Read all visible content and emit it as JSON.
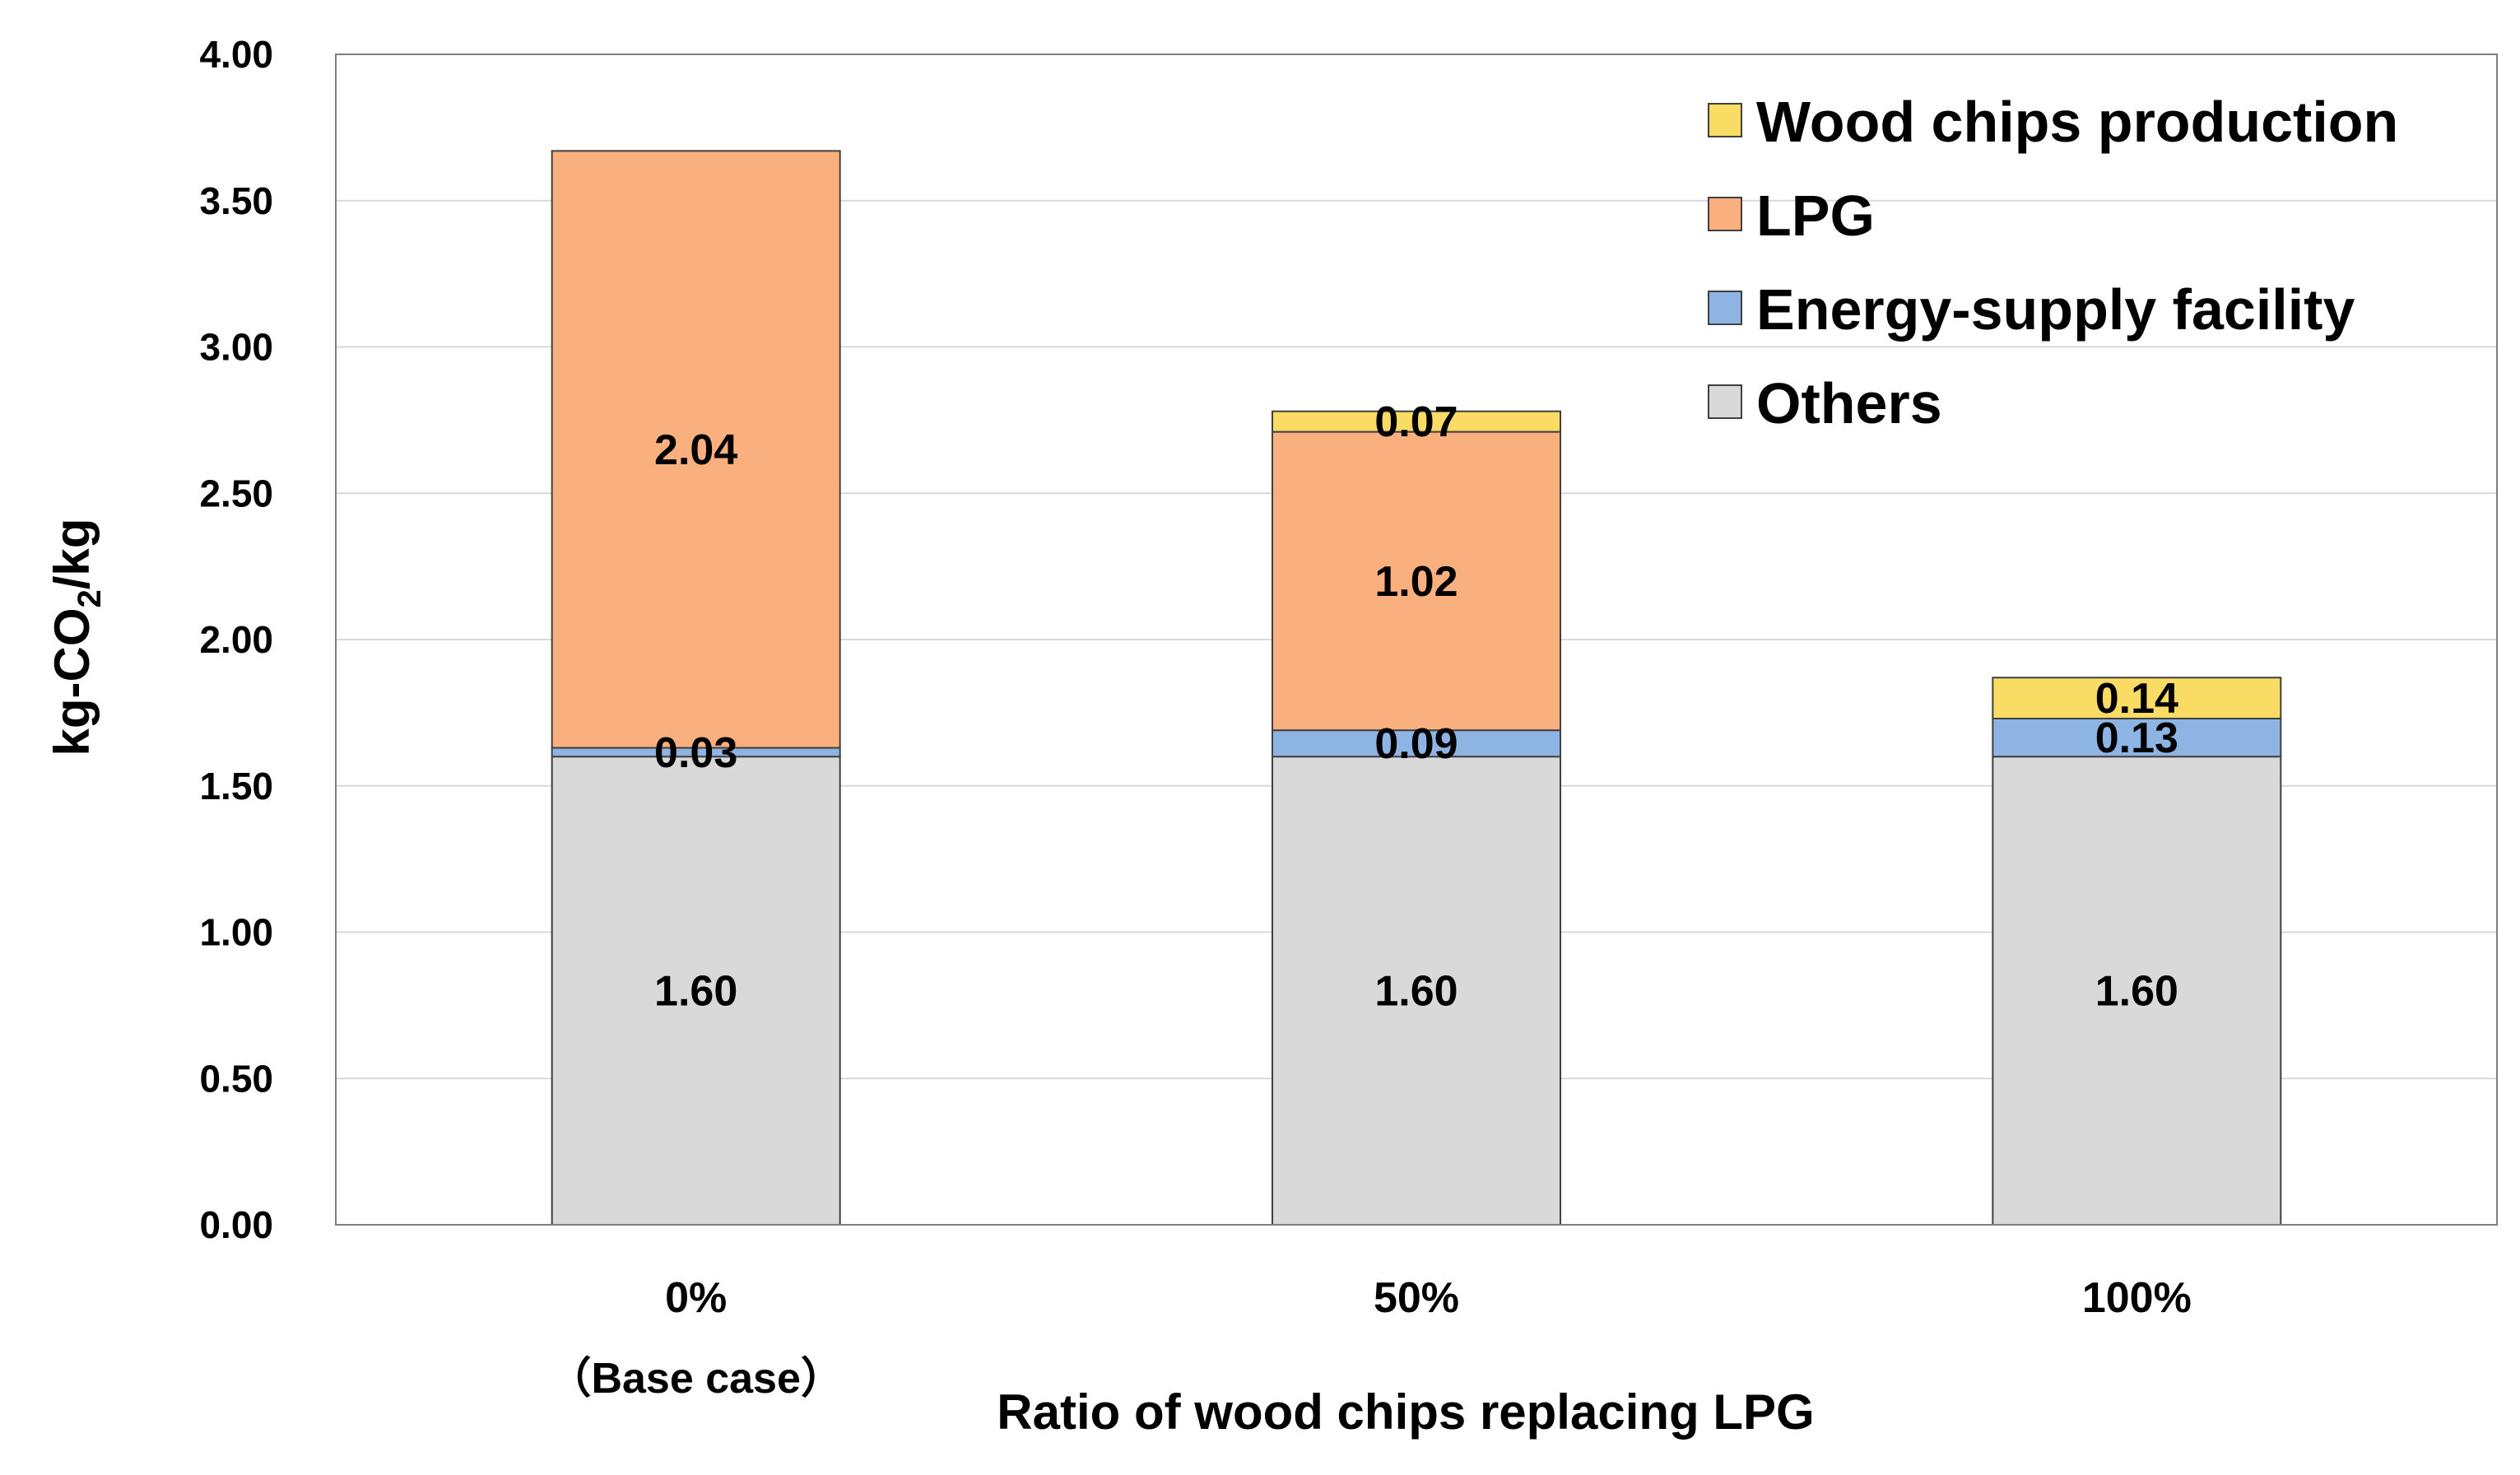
{
  "chart_data": {
    "type": "bar",
    "stacked": true,
    "xlabel": "Ratio of wood chips replacing LPG",
    "ylabel": "kg-CO2/kg",
    "ylabel_parts": {
      "pre": "kg-CO",
      "sub": "2",
      "post": "/kg"
    },
    "ylim": [
      0,
      4
    ],
    "yticks": [
      "0.00",
      "0.50",
      "1.00",
      "1.50",
      "2.00",
      "2.50",
      "3.00",
      "3.50",
      "4.00"
    ],
    "categories": [
      {
        "line1": "0%",
        "line2": "（Base case）"
      },
      {
        "line1": "50%",
        "line2": ""
      },
      {
        "line1": "100%",
        "line2": ""
      }
    ],
    "series": [
      {
        "name": "Others",
        "color": "#d9d9d9",
        "values": [
          1.6,
          1.6,
          1.6
        ],
        "labels": [
          "1.60",
          "1.60",
          "1.60"
        ]
      },
      {
        "name": "Energy-supply facility",
        "color": "#8eb4e3",
        "values": [
          0.03,
          0.09,
          0.13
        ],
        "labels": [
          "0.03",
          "0.09",
          "0.13"
        ]
      },
      {
        "name": "LPG",
        "color": "#fab07e",
        "values": [
          2.04,
          1.02,
          0
        ],
        "labels": [
          "2.04",
          "1.02",
          ""
        ]
      },
      {
        "name": "Wood chips production",
        "color": "#fadc64",
        "values": [
          0,
          0.07,
          0.14
        ],
        "labels": [
          "",
          "0.07",
          "0.14"
        ]
      }
    ],
    "legend_order": [
      "Wood chips production",
      "LPG",
      "Energy-supply facility",
      "Others"
    ],
    "legend_position": "top-right",
    "grid": true
  }
}
